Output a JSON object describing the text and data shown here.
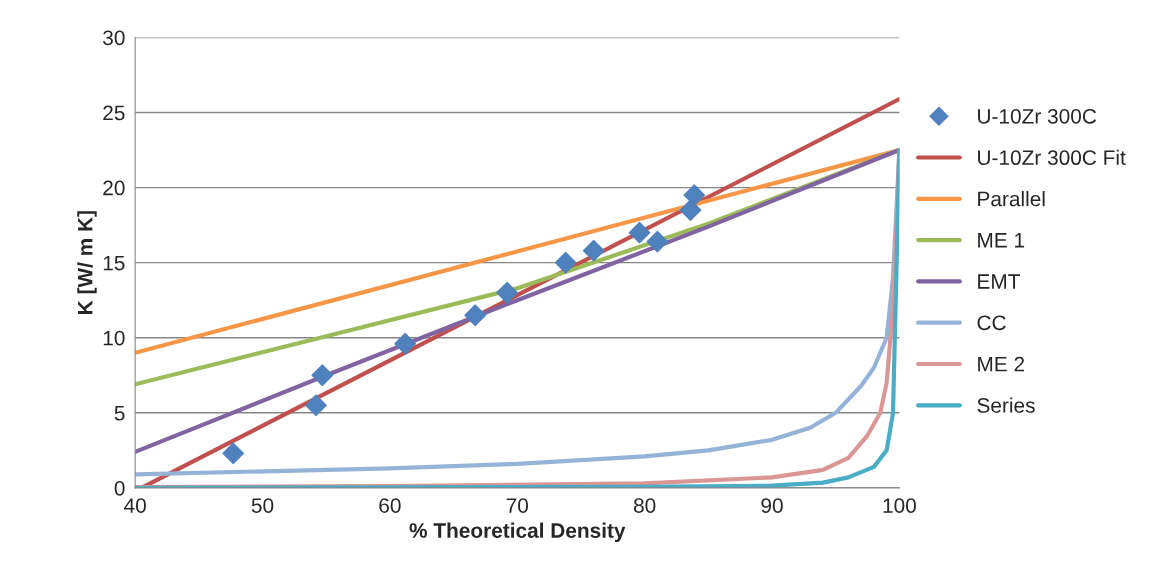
{
  "chart_data": {
    "type": "line",
    "xlabel": "% Theoretical Density",
    "ylabel": "K [W/ m K]",
    "xlim": [
      40,
      100
    ],
    "xticks": [
      40,
      50,
      60,
      70,
      80,
      90,
      100
    ],
    "ylim": [
      0,
      30
    ],
    "yticks": [
      0,
      5,
      10,
      15,
      20,
      25,
      30
    ],
    "grid": "y",
    "legend": "right",
    "line_style": "solid",
    "series": [
      {
        "name": "U-10Zr 300C",
        "type": "scatter",
        "marker": "diamond",
        "color": "#4f81bd",
        "x": [
          47.7,
          54.2,
          54.7,
          61.2,
          66.7,
          69.2,
          73.8,
          76.0,
          79.6,
          81.0,
          83.6,
          83.9
        ],
        "values": [
          2.3,
          5.5,
          7.5,
          9.6,
          11.5,
          13.0,
          15.0,
          15.8,
          17.0,
          16.4,
          18.5,
          19.5
        ]
      },
      {
        "name": "U-10Zr 300C Fit",
        "color": "#c0504d",
        "x": [
          40.5,
          100
        ],
        "values": [
          0,
          25.9
        ]
      },
      {
        "name": "Parallel",
        "color": "#f79646",
        "x": [
          40,
          100
        ],
        "values": [
          9,
          22.5
        ]
      },
      {
        "name": "ME 1",
        "color": "#9bbb59",
        "x": [
          40,
          55,
          70,
          85,
          100
        ],
        "values": [
          6.9,
          10.1,
          13.3,
          17.6,
          22.5
        ]
      },
      {
        "name": "EMT",
        "color": "#8064a2",
        "x": [
          40,
          55,
          70,
          85,
          100
        ],
        "values": [
          2.4,
          7.5,
          12.5,
          17.4,
          22.5
        ]
      },
      {
        "name": "CC",
        "color": "#95b3d7",
        "x": [
          40,
          60,
          70,
          80,
          85,
          90,
          93,
          95,
          97,
          98,
          99,
          99.5,
          100
        ],
        "values": [
          0.9,
          1.3,
          1.6,
          2.1,
          2.5,
          3.2,
          4.0,
          5.0,
          6.8,
          8.0,
          10.0,
          14.0,
          22.5
        ]
      },
      {
        "name": "ME 2",
        "color": "#d99694",
        "x": [
          40,
          60,
          80,
          90,
          94,
          96,
          97.5,
          98.5,
          99,
          99.5,
          100
        ],
        "values": [
          0.05,
          0.12,
          0.3,
          0.7,
          1.2,
          2.0,
          3.5,
          5.0,
          7.0,
          12.0,
          22.5
        ]
      },
      {
        "name": "Series",
        "color": "#4bacc6",
        "x": [
          40,
          80,
          90,
          94,
          96,
          98,
          99,
          99.5,
          100
        ],
        "values": [
          0.0,
          0.07,
          0.15,
          0.35,
          0.7,
          1.4,
          2.5,
          5.0,
          22.5
        ]
      }
    ]
  }
}
